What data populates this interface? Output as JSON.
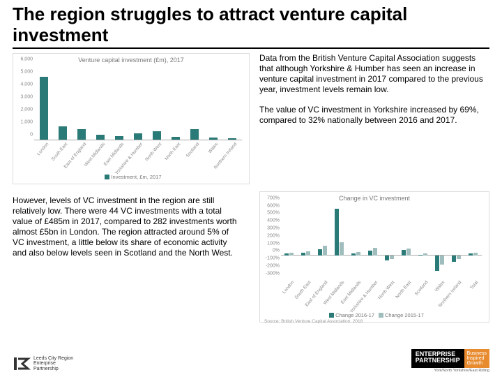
{
  "title": "The region struggles to attract venture capital investment",
  "para1": "Data from the British Venture Capital Association suggests that although Yorkshire & Humber has seen an increase in venture capital investment in 2017 compared to the previous year, investment levels remain low.",
  "para2": "The value of VC investment in Yorkshire increased by 69%, compared to 32% nationally between 2016 and 2017.",
  "para3": "However, levels of VC investment in the region are still relatively low. There were 44 VC investments with a total value of £485m in 2017, compared to 282 investments worth almost £5bn in London. The region attracted around 5% of VC investment, a little below its share of economic activity and also below levels seen in Scotland and the North West.",
  "chart1": {
    "type": "bar",
    "title": "Venture capital investment (£m), 2017",
    "categories": [
      "London",
      "South East",
      "East of England",
      "West Midlands",
      "East Midlands",
      "Yorkshire & Humber",
      "North West",
      "North East",
      "Scotland",
      "Wales",
      "Northern Ireland"
    ],
    "values": [
      5000,
      1050,
      800,
      400,
      280,
      485,
      680,
      200,
      820,
      150,
      120
    ],
    "ylim": [
      0,
      6000
    ],
    "ytick_step": 1000,
    "bar_color": "#2a7a77",
    "grid_color": "#dddddd",
    "legend": "Investment, £m, 2017",
    "background_color": "#ffffff",
    "label_fontsize": 7,
    "title_fontsize": 9
  },
  "chart2": {
    "type": "bar",
    "title": "Change in VC investment",
    "categories": [
      "London",
      "South East",
      "East of England",
      "West Midlands",
      "East Midlands",
      "Yorkshire & Humber",
      "North West",
      "North East",
      "Scotland",
      "Wales",
      "Northern Ireland",
      "Total"
    ],
    "series": [
      {
        "name": "Change 2016-17",
        "color": "#2a7a77",
        "values": [
          30,
          45,
          90,
          620,
          30,
          69,
          -60,
          80,
          15,
          -200,
          -80,
          32
        ]
      },
      {
        "name": "Change 2015-17",
        "color": "#9fbdbc",
        "values": [
          40,
          60,
          130,
          180,
          50,
          110,
          -40,
          100,
          30,
          -120,
          -40,
          45
        ]
      }
    ],
    "ylim": [
      -300,
      700
    ],
    "ytick_step": 100,
    "grid_color": "#dddddd",
    "background_color": "#ffffff",
    "source": "Source: British Venture Capital Association, 2018",
    "label_fontsize": 7,
    "title_fontsize": 9
  },
  "footer": {
    "lep_lines": [
      "Leeds City Region",
      "Enterprise",
      "Partnership"
    ],
    "ep_main1": "ENTERPRISE",
    "ep_main2": "PARTNERSHIP",
    "ep_side1": "Business",
    "ep_side2": "Inspired",
    "ep_side3": "Growth",
    "ep_sub": "York/North Yorkshire/East Riding"
  },
  "colors": {
    "text": "#000000",
    "muted": "#888888",
    "accent": "#2a7a77"
  }
}
